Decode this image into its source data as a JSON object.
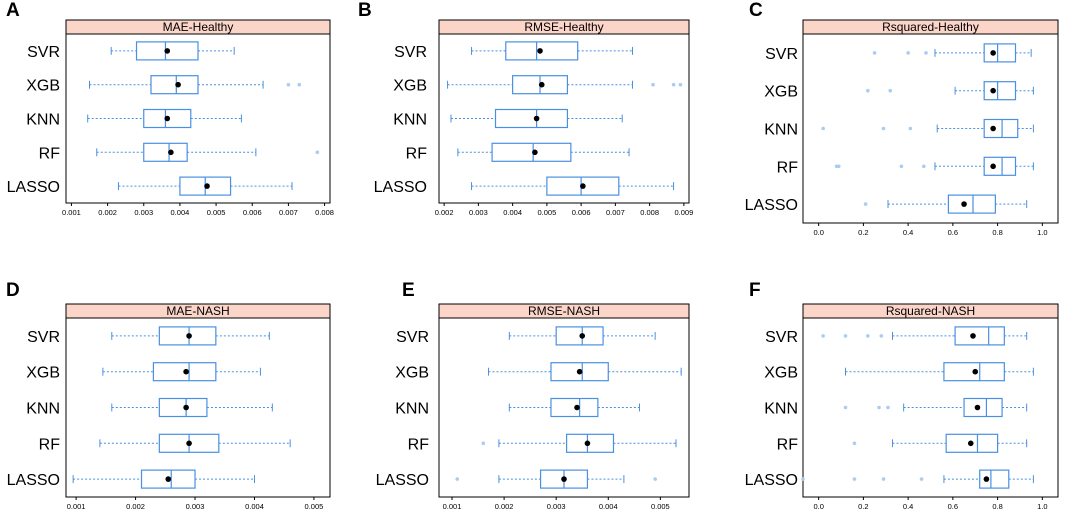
{
  "colors": {
    "strip_fill": "#fcd5c9",
    "box_stroke": "#4a90e2",
    "whisker": "#4a90e2",
    "outlier": "#a9cdf2",
    "mean": "#000000",
    "frame": "#000000"
  },
  "chart_data": [
    {
      "panel": "A",
      "type": "boxplot",
      "title": "MAE-Healthy",
      "categories": [
        "SVR",
        "XGB",
        "KNN",
        "RF",
        "LASSO"
      ],
      "xlim": [
        0.00085,
        0.00815
      ],
      "ticks": [
        0.001,
        0.002,
        0.003,
        0.004,
        0.005,
        0.006,
        0.007,
        0.008
      ],
      "tick_labels": [
        "0.001",
        "0.002",
        "0.003",
        "0.004",
        "0.005",
        "0.006",
        "0.007",
        "0.008"
      ],
      "boxes": [
        {
          "min": 0.0021,
          "q1": 0.0028,
          "median": 0.0036,
          "q3": 0.0045,
          "max": 0.0055,
          "mean": 0.00365,
          "outliers": []
        },
        {
          "min": 0.0015,
          "q1": 0.0032,
          "median": 0.0039,
          "q3": 0.0045,
          "max": 0.0063,
          "mean": 0.00395,
          "outliers": [
            0.007,
            0.0073
          ]
        },
        {
          "min": 0.00145,
          "q1": 0.003,
          "median": 0.0036,
          "q3": 0.0043,
          "max": 0.0057,
          "mean": 0.00365,
          "outliers": []
        },
        {
          "min": 0.0017,
          "q1": 0.003,
          "median": 0.0037,
          "q3": 0.0042,
          "max": 0.0061,
          "mean": 0.00375,
          "outliers": [
            0.0078
          ]
        },
        {
          "min": 0.0023,
          "q1": 0.004,
          "median": 0.0047,
          "q3": 0.0054,
          "max": 0.0071,
          "mean": 0.00475,
          "outliers": []
        }
      ]
    },
    {
      "panel": "B",
      "type": "boxplot",
      "title": "RMSE-Healthy",
      "categories": [
        "SVR",
        "XGB",
        "KNN",
        "RF",
        "LASSO"
      ],
      "xlim": [
        0.00185,
        0.00915
      ],
      "ticks": [
        0.002,
        0.003,
        0.004,
        0.005,
        0.006,
        0.007,
        0.008,
        0.009
      ],
      "tick_labels": [
        "0.002",
        "0.003",
        "0.004",
        "0.005",
        "0.006",
        "0.007",
        "0.008",
        "0.009"
      ],
      "boxes": [
        {
          "min": 0.0028,
          "q1": 0.0038,
          "median": 0.0047,
          "q3": 0.0059,
          "max": 0.0075,
          "mean": 0.0048,
          "outliers": []
        },
        {
          "min": 0.0021,
          "q1": 0.004,
          "median": 0.0048,
          "q3": 0.0056,
          "max": 0.0075,
          "mean": 0.00485,
          "outliers": [
            0.0081,
            0.0087,
            0.0089
          ]
        },
        {
          "min": 0.0022,
          "q1": 0.0035,
          "median": 0.0047,
          "q3": 0.0056,
          "max": 0.0072,
          "mean": 0.0047,
          "outliers": []
        },
        {
          "min": 0.0024,
          "q1": 0.0034,
          "median": 0.0046,
          "q3": 0.0057,
          "max": 0.0074,
          "mean": 0.00465,
          "outliers": []
        },
        {
          "min": 0.0028,
          "q1": 0.005,
          "median": 0.006,
          "q3": 0.0071,
          "max": 0.0087,
          "mean": 0.00605,
          "outliers": []
        }
      ]
    },
    {
      "panel": "C",
      "type": "boxplot",
      "title": "Rsquared-Healthy",
      "categories": [
        "SVR",
        "XGB",
        "KNN",
        "RF",
        "LASSO"
      ],
      "xlim": [
        -0.07,
        1.07
      ],
      "ticks": [
        0.0,
        0.2,
        0.4,
        0.6,
        0.8,
        1.0
      ],
      "tick_labels": [
        "0.0",
        "0.2",
        "0.4",
        "0.6",
        "0.8",
        "1.0"
      ],
      "boxes": [
        {
          "min": 0.52,
          "q1": 0.74,
          "median": 0.8,
          "q3": 0.88,
          "max": 0.95,
          "mean": 0.78,
          "outliers": [
            0.25,
            0.4,
            0.48
          ]
        },
        {
          "min": 0.61,
          "q1": 0.74,
          "median": 0.8,
          "q3": 0.88,
          "max": 0.96,
          "mean": 0.78,
          "outliers": [
            0.22,
            0.32
          ]
        },
        {
          "min": 0.53,
          "q1": 0.74,
          "median": 0.82,
          "q3": 0.89,
          "max": 0.96,
          "mean": 0.78,
          "outliers": [
            0.02,
            0.29,
            0.41
          ]
        },
        {
          "min": 0.52,
          "q1": 0.74,
          "median": 0.82,
          "q3": 0.88,
          "max": 0.96,
          "mean": 0.78,
          "outliers": [
            0.08,
            0.09,
            0.37,
            0.47
          ]
        },
        {
          "min": 0.31,
          "q1": 0.58,
          "median": 0.69,
          "q3": 0.79,
          "max": 0.93,
          "mean": 0.65,
          "outliers": [
            0.21
          ]
        }
      ]
    },
    {
      "panel": "D",
      "type": "boxplot",
      "title": "MAE-NASH",
      "categories": [
        "SVR",
        "XGB",
        "KNN",
        "RF",
        "LASSO"
      ],
      "xlim": [
        0.00083,
        0.00527
      ],
      "ticks": [
        0.001,
        0.002,
        0.003,
        0.004,
        0.005
      ],
      "tick_labels": [
        "0.001",
        "0.002",
        "0.003",
        "0.004",
        "0.005"
      ],
      "boxes": [
        {
          "min": 0.0016,
          "q1": 0.0024,
          "median": 0.0029,
          "q3": 0.00335,
          "max": 0.00425,
          "mean": 0.0029,
          "outliers": []
        },
        {
          "min": 0.00145,
          "q1": 0.0023,
          "median": 0.0029,
          "q3": 0.00335,
          "max": 0.0041,
          "mean": 0.00285,
          "outliers": []
        },
        {
          "min": 0.0016,
          "q1": 0.0024,
          "median": 0.00285,
          "q3": 0.0032,
          "max": 0.0043,
          "mean": 0.00285,
          "outliers": []
        },
        {
          "min": 0.0014,
          "q1": 0.0024,
          "median": 0.0029,
          "q3": 0.0034,
          "max": 0.0046,
          "mean": 0.0029,
          "outliers": []
        },
        {
          "min": 0.00095,
          "q1": 0.0021,
          "median": 0.0026,
          "q3": 0.003,
          "max": 0.004,
          "mean": 0.00255,
          "outliers": []
        }
      ]
    },
    {
      "panel": "E",
      "type": "boxplot",
      "title": "RMSE-NASH",
      "categories": [
        "SVR",
        "XGB",
        "KNN",
        "RF",
        "LASSO"
      ],
      "xlim": [
        0.00075,
        0.00555
      ],
      "ticks": [
        0.001,
        0.002,
        0.003,
        0.004,
        0.005
      ],
      "tick_labels": [
        "0.001",
        "0.002",
        "0.003",
        "0.004",
        "0.005"
      ],
      "boxes": [
        {
          "min": 0.0021,
          "q1": 0.003,
          "median": 0.0035,
          "q3": 0.0039,
          "max": 0.0049,
          "mean": 0.0035,
          "outliers": []
        },
        {
          "min": 0.0017,
          "q1": 0.0029,
          "median": 0.0035,
          "q3": 0.004,
          "max": 0.0054,
          "mean": 0.00345,
          "outliers": []
        },
        {
          "min": 0.0021,
          "q1": 0.0029,
          "median": 0.00345,
          "q3": 0.0038,
          "max": 0.0046,
          "mean": 0.0034,
          "outliers": []
        },
        {
          "min": 0.0019,
          "q1": 0.0032,
          "median": 0.0036,
          "q3": 0.0041,
          "max": 0.0053,
          "mean": 0.0036,
          "outliers": [
            0.0016
          ]
        },
        {
          "min": 0.0019,
          "q1": 0.0027,
          "median": 0.00315,
          "q3": 0.0036,
          "max": 0.0043,
          "mean": 0.00315,
          "outliers": [
            0.0011,
            0.0049
          ]
        }
      ]
    },
    {
      "panel": "F",
      "type": "boxplot",
      "title": "Rsquared-NASH",
      "categories": [
        "SVR",
        "XGB",
        "KNN",
        "RF",
        "LASSO"
      ],
      "xlim": [
        -0.07,
        1.07
      ],
      "ticks": [
        0.0,
        0.2,
        0.4,
        0.6,
        0.8,
        1.0
      ],
      "tick_labels": [
        "0.0",
        "0.2",
        "0.4",
        "0.6",
        "0.8",
        "1.0"
      ],
      "boxes": [
        {
          "min": 0.33,
          "q1": 0.61,
          "median": 0.76,
          "q3": 0.83,
          "max": 0.93,
          "mean": 0.69,
          "outliers": [
            0.02,
            0.12,
            0.22,
            0.28
          ]
        },
        {
          "min": 0.12,
          "q1": 0.56,
          "median": 0.72,
          "q3": 0.83,
          "max": 0.96,
          "mean": 0.7,
          "outliers": []
        },
        {
          "min": 0.38,
          "q1": 0.65,
          "median": 0.75,
          "q3": 0.82,
          "max": 0.93,
          "mean": 0.71,
          "outliers": [
            0.12,
            0.27,
            0.31
          ]
        },
        {
          "min": 0.33,
          "q1": 0.57,
          "median": 0.71,
          "q3": 0.8,
          "max": 0.93,
          "mean": 0.68,
          "outliers": [
            0.16
          ]
        },
        {
          "min": 0.56,
          "q1": 0.72,
          "median": 0.77,
          "q3": 0.85,
          "max": 0.96,
          "mean": 0.75,
          "outliers": [
            -0.07,
            0.16,
            0.29,
            0.46
          ]
        }
      ]
    }
  ]
}
